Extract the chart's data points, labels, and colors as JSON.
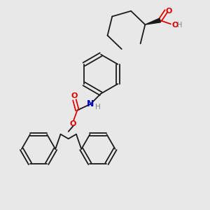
{
  "bg_color": "#e8e8e8",
  "bond_color": "#1a1a1a",
  "bond_width": 1.3,
  "o_color": "#dd0000",
  "n_color": "#0000cc",
  "h_color": "#808080",
  "figsize": [
    3.0,
    3.0
  ],
  "dpi": 100,
  "xlim": [
    0,
    10
  ],
  "ylim": [
    0,
    10
  ]
}
